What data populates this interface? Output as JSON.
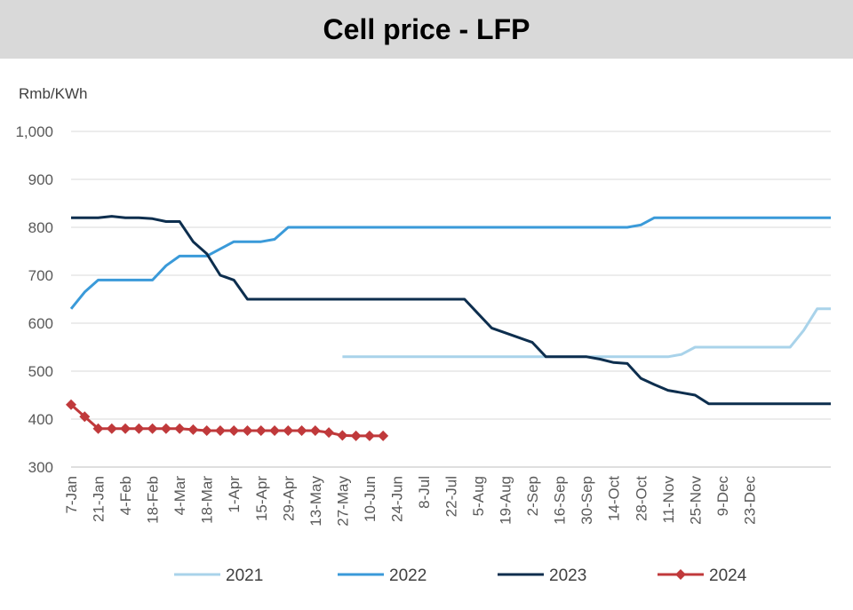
{
  "chart_data": {
    "type": "line",
    "title": "Cell price - LFP",
    "ylabel": "Rmb/KWh",
    "xlabel": "",
    "ylim": [
      300,
      1000
    ],
    "y_ticks": [
      "300",
      "400",
      "500",
      "600",
      "700",
      "800",
      "900",
      "1,000"
    ],
    "grid": "horizontal",
    "legend_position": "bottom",
    "categories": [
      "7-Jan",
      "21-Jan",
      "4-Feb",
      "18-Feb",
      "4-Mar",
      "18-Mar",
      "1-Apr",
      "15-Apr",
      "29-Apr",
      "13-May",
      "27-May",
      "10-Jun",
      "24-Jun",
      "8-Jul",
      "22-Jul",
      "5-Aug",
      "19-Aug",
      "2-Sep",
      "16-Sep",
      "30-Sep",
      "14-Oct",
      "28-Oct",
      "11-Nov",
      "25-Nov",
      "9-Dec",
      "23-Dec"
    ],
    "series": [
      {
        "name": "2021",
        "color": "#a9d3ea",
        "marker": "none",
        "points": [
          [
            20,
            530
          ],
          [
            21,
            530
          ],
          [
            22,
            530
          ],
          [
            23,
            530
          ],
          [
            24,
            530
          ],
          [
            25,
            530
          ],
          [
            26,
            530
          ],
          [
            27,
            530
          ],
          [
            28,
            530
          ],
          [
            29,
            530
          ],
          [
            30,
            530
          ],
          [
            31,
            530
          ],
          [
            32,
            530
          ],
          [
            33,
            530
          ],
          [
            34,
            530
          ],
          [
            35,
            530
          ],
          [
            36,
            530
          ],
          [
            37,
            530
          ],
          [
            38,
            530
          ],
          [
            39,
            530
          ],
          [
            40,
            530
          ],
          [
            41,
            530
          ],
          [
            42,
            530
          ],
          [
            43,
            530
          ],
          [
            44,
            530
          ],
          [
            45,
            535
          ],
          [
            46,
            550
          ],
          [
            47,
            550
          ],
          [
            48,
            550
          ],
          [
            49,
            550
          ],
          [
            50,
            550
          ],
          [
            51,
            550
          ],
          [
            52,
            550
          ],
          [
            53,
            550
          ],
          [
            54,
            585
          ],
          [
            55,
            630
          ],
          [
            56,
            630
          ]
        ]
      },
      {
        "name": "2022",
        "color": "#3a9ad9",
        "marker": "none",
        "points": [
          [
            0,
            630
          ],
          [
            1,
            665
          ],
          [
            2,
            690
          ],
          [
            3,
            690
          ],
          [
            4,
            690
          ],
          [
            5,
            690
          ],
          [
            6,
            690
          ],
          [
            7,
            720
          ],
          [
            8,
            740
          ],
          [
            9,
            740
          ],
          [
            10,
            740
          ],
          [
            11,
            755
          ],
          [
            12,
            770
          ],
          [
            13,
            770
          ],
          [
            14,
            770
          ],
          [
            15,
            775
          ],
          [
            16,
            800
          ],
          [
            17,
            800
          ],
          [
            18,
            800
          ],
          [
            19,
            800
          ],
          [
            20,
            800
          ],
          [
            21,
            800
          ],
          [
            22,
            800
          ],
          [
            23,
            800
          ],
          [
            24,
            800
          ],
          [
            25,
            800
          ],
          [
            26,
            800
          ],
          [
            27,
            800
          ],
          [
            28,
            800
          ],
          [
            29,
            800
          ],
          [
            30,
            800
          ],
          [
            31,
            800
          ],
          [
            32,
            800
          ],
          [
            33,
            800
          ],
          [
            34,
            800
          ],
          [
            35,
            800
          ],
          [
            36,
            800
          ],
          [
            37,
            800
          ],
          [
            38,
            800
          ],
          [
            39,
            800
          ],
          [
            40,
            800
          ],
          [
            41,
            800
          ],
          [
            42,
            805
          ],
          [
            43,
            820
          ],
          [
            44,
            820
          ],
          [
            45,
            820
          ],
          [
            46,
            820
          ],
          [
            47,
            820
          ],
          [
            48,
            820
          ],
          [
            49,
            820
          ],
          [
            50,
            820
          ],
          [
            51,
            820
          ],
          [
            52,
            820
          ],
          [
            53,
            820
          ],
          [
            54,
            820
          ],
          [
            55,
            820
          ],
          [
            56,
            820
          ]
        ]
      },
      {
        "name": "2023",
        "color": "#0d2e4e",
        "marker": "none",
        "points": [
          [
            0,
            820
          ],
          [
            1,
            820
          ],
          [
            2,
            820
          ],
          [
            3,
            823
          ],
          [
            4,
            820
          ],
          [
            5,
            820
          ],
          [
            6,
            818
          ],
          [
            7,
            812
          ],
          [
            8,
            812
          ],
          [
            9,
            770
          ],
          [
            10,
            745
          ],
          [
            11,
            700
          ],
          [
            12,
            690
          ],
          [
            13,
            650
          ],
          [
            14,
            650
          ],
          [
            15,
            650
          ],
          [
            16,
            650
          ],
          [
            17,
            650
          ],
          [
            18,
            650
          ],
          [
            19,
            650
          ],
          [
            20,
            650
          ],
          [
            21,
            650
          ],
          [
            22,
            650
          ],
          [
            23,
            650
          ],
          [
            24,
            650
          ],
          [
            25,
            650
          ],
          [
            26,
            650
          ],
          [
            27,
            650
          ],
          [
            28,
            650
          ],
          [
            29,
            650
          ],
          [
            30,
            620
          ],
          [
            31,
            590
          ],
          [
            32,
            580
          ],
          [
            33,
            570
          ],
          [
            34,
            560
          ],
          [
            35,
            530
          ],
          [
            36,
            530
          ],
          [
            37,
            530
          ],
          [
            38,
            530
          ],
          [
            39,
            525
          ],
          [
            40,
            518
          ],
          [
            41,
            516
          ],
          [
            42,
            485
          ],
          [
            43,
            472
          ],
          [
            44,
            460
          ],
          [
            45,
            455
          ],
          [
            46,
            450
          ],
          [
            47,
            432
          ],
          [
            48,
            432
          ],
          [
            49,
            432
          ],
          [
            50,
            432
          ],
          [
            51,
            432
          ],
          [
            52,
            432
          ],
          [
            53,
            432
          ],
          [
            54,
            432
          ],
          [
            55,
            432
          ],
          [
            56,
            432
          ]
        ]
      },
      {
        "name": "2024",
        "color": "#c0393b",
        "marker": "diamond",
        "points": [
          [
            0,
            430
          ],
          [
            1,
            405
          ],
          [
            2,
            380
          ],
          [
            3,
            380
          ],
          [
            4,
            380
          ],
          [
            5,
            380
          ],
          [
            6,
            380
          ],
          [
            7,
            380
          ],
          [
            8,
            380
          ],
          [
            9,
            378
          ],
          [
            10,
            376
          ],
          [
            11,
            376
          ],
          [
            12,
            376
          ],
          [
            13,
            376
          ],
          [
            14,
            376
          ],
          [
            15,
            376
          ],
          [
            16,
            376
          ],
          [
            17,
            376
          ],
          [
            18,
            376
          ],
          [
            19,
            372
          ],
          [
            20,
            366
          ],
          [
            21,
            365
          ],
          [
            22,
            365
          ],
          [
            23,
            365
          ]
        ]
      }
    ]
  }
}
